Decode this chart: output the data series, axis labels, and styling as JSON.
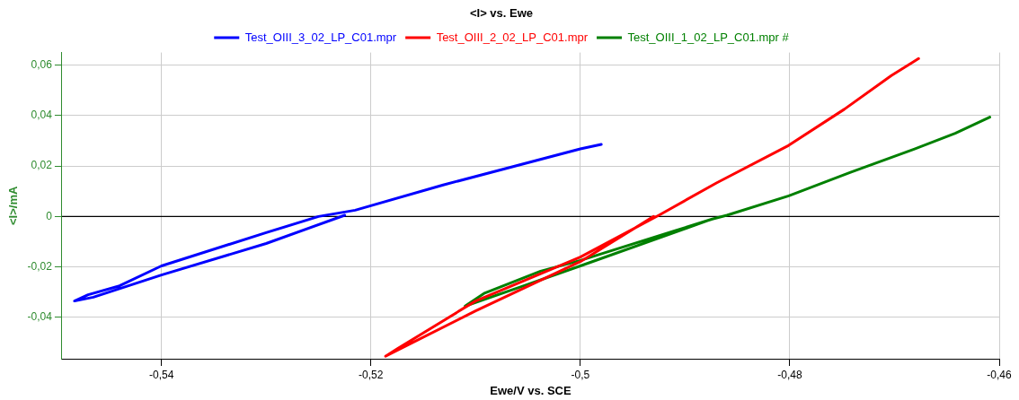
{
  "chart_data": {
    "type": "line",
    "title": "<I> vs. Ewe",
    "xlabel": "Ewe/V vs. SCE",
    "ylabel": "<I>/mA",
    "xlim": [
      -0.5495,
      -0.46
    ],
    "ylim": [
      -0.0564,
      0.065
    ],
    "xticks": [
      {
        "value": -0.54,
        "label": "-0,54"
      },
      {
        "value": -0.52,
        "label": "-0,52"
      },
      {
        "value": -0.5,
        "label": "-0,5"
      },
      {
        "value": -0.48,
        "label": "-0,48"
      },
      {
        "value": -0.46,
        "label": "-0,46"
      }
    ],
    "yticks": [
      {
        "value": -0.04,
        "label": "-0,04"
      },
      {
        "value": -0.02,
        "label": "-0,02"
      },
      {
        "value": 0,
        "label": "0"
      },
      {
        "value": 0.02,
        "label": "0,02"
      },
      {
        "value": 0.04,
        "label": "0,04"
      },
      {
        "value": 0.06,
        "label": "0,06"
      }
    ],
    "grid": true,
    "legend": "top",
    "marker": "none",
    "line_style": "solid",
    "ref_lines": [
      {
        "axis": "y",
        "value": 0,
        "color": "#000000"
      }
    ],
    "series": [
      {
        "name": "Test_OIII_3_02_LP_C01.mpr",
        "color": "#0000ff",
        "x": [
          -0.5225,
          -0.53,
          -0.54,
          -0.5465,
          -0.5483,
          -0.547,
          -0.544,
          -0.54,
          -0.53,
          -0.525,
          -0.5215,
          -0.5131,
          -0.5,
          -0.498
        ],
        "values": [
          0.0005,
          -0.0107,
          -0.0232,
          -0.032,
          -0.0335,
          -0.031,
          -0.0275,
          -0.0196,
          -0.0064,
          0,
          0.0025,
          0.0125,
          0.0268,
          0.0286
        ]
      },
      {
        "name": "Test_OIII_2_02_LP_C01.mpr",
        "color": "#ff0000",
        "x": [
          -0.493,
          -0.5,
          -0.51,
          -0.5186,
          -0.5175,
          -0.51,
          -0.5,
          -0.4925,
          -0.487,
          -0.4801,
          -0.4748,
          -0.4703,
          -0.4677
        ],
        "values": [
          0,
          -0.0179,
          -0.0374,
          -0.0554,
          -0.0525,
          -0.0335,
          -0.0161,
          0.0005,
          0.0133,
          0.0282,
          0.0425,
          0.0559,
          0.0626
        ]
      },
      {
        "name": "Test_OIII_1_02_LP_C01.mpr #",
        "color": "#008000",
        "x": [
          -0.4874,
          -0.5,
          -0.5057,
          -0.511,
          -0.5092,
          -0.5038,
          -0.5,
          -0.4874,
          -0.486,
          -0.4801,
          -0.4742,
          -0.4682,
          -0.4642,
          -0.4609
        ],
        "values": [
          -0.001,
          -0.0196,
          -0.0279,
          -0.0355,
          -0.0305,
          -0.0217,
          -0.0174,
          -0.001,
          0.0005,
          0.0082,
          0.0175,
          0.0266,
          0.033,
          0.0394
        ]
      }
    ]
  }
}
